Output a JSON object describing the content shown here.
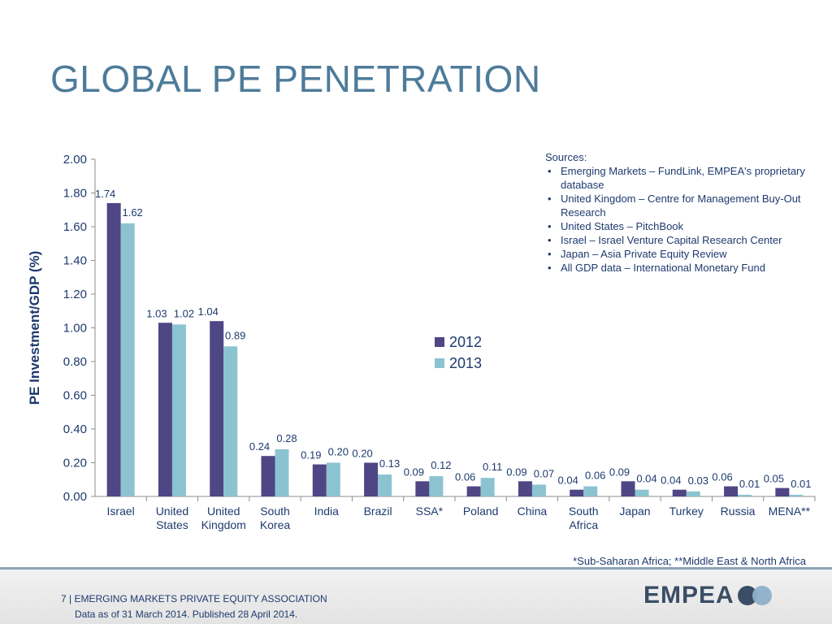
{
  "slide": {
    "title": "GLOBAL PE PENETRATION",
    "footnote": "*Sub-Saharan Africa; **Middle East & North Africa",
    "footer_text": "7 | EMERGING MARKETS PRIVATE EQUITY ASSOCIATION",
    "footer_date": "Data as of 31 March 2014. Published 28 April 2014.",
    "logo_text": "EMPEA"
  },
  "sources": {
    "heading": "Sources:",
    "items": [
      "Emerging Markets – FundLink, EMPEA's proprietary database",
      "United Kingdom – Centre for Management Buy-Out Research",
      "United States – PitchBook",
      "Israel – Israel Venture Capital Research Center",
      "Japan – Asia Private Equity Review",
      "All GDP data – International Monetary Fund"
    ]
  },
  "colors": {
    "series_2012": "#4e4685",
    "series_2013": "#8cc3d1",
    "text": "#1e3a6e",
    "title": "#4e7b9a"
  },
  "chart_data": {
    "type": "bar",
    "title": "",
    "ylabel": "PE Investment/GDP (%)",
    "xlabel": "",
    "ylim": [
      0,
      2.0
    ],
    "yticks": [
      "0.00",
      "0.20",
      "0.40",
      "0.60",
      "0.80",
      "1.00",
      "1.20",
      "1.40",
      "1.60",
      "1.80",
      "2.00"
    ],
    "grid": false,
    "legend_position": "middle",
    "categories": [
      [
        "Israel"
      ],
      [
        "United",
        "States"
      ],
      [
        "United",
        "Kingdom"
      ],
      [
        "South",
        "Korea"
      ],
      [
        "India"
      ],
      [
        "Brazil"
      ],
      [
        "SSA*"
      ],
      [
        "Poland"
      ],
      [
        "China"
      ],
      [
        "South",
        "Africa"
      ],
      [
        "Japan"
      ],
      [
        "Turkey"
      ],
      [
        "Russia"
      ],
      [
        "MENA**"
      ]
    ],
    "series": [
      {
        "name": "2012",
        "values": [
          1.74,
          1.03,
          1.04,
          0.24,
          0.19,
          0.2,
          0.09,
          0.06,
          0.09,
          0.04,
          0.09,
          0.04,
          0.06,
          0.05
        ]
      },
      {
        "name": "2013",
        "values": [
          1.62,
          1.02,
          0.89,
          0.28,
          0.2,
          0.13,
          0.12,
          0.11,
          0.07,
          0.06,
          0.04,
          0.03,
          0.01,
          0.01
        ]
      }
    ]
  }
}
